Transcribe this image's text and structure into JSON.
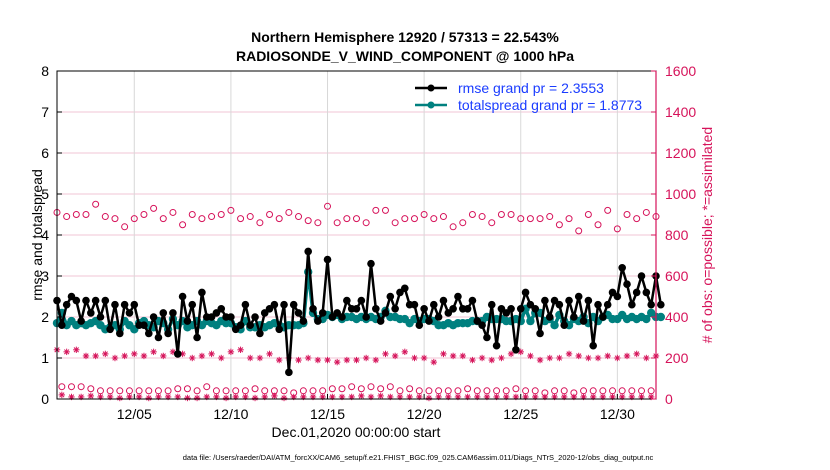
{
  "chart_data": {
    "type": "line",
    "title": "Northern Hemisphere 12920 / 57313 = 22.543%",
    "subtitle": "RADIOSONDE_V_WIND_COMPONENT @ 1000 hPa",
    "xlabel": "Dec.01,2020 00:00:00 start",
    "ylabel": "rmse and totalspread",
    "ylabel_right": "# of obs: o=possible; *=assimilated",
    "footer": "data file: /Users/raeder/DAI/ATM_forcXX/CAM6_setup/f.e21.FHIST_BGC.f09_025.CAM6assim.011/Diags_NTrS_2020-12/obs_diag_output.nc",
    "xlim_days": [
      0,
      31
    ],
    "ylim": [
      0,
      8
    ],
    "ylim_right": [
      0,
      1600
    ],
    "grid": true,
    "legend_position": "top-right",
    "x_ticks": [
      {
        "day": 4,
        "label": "12/05"
      },
      {
        "day": 9,
        "label": "12/10"
      },
      {
        "day": 14,
        "label": "12/15"
      },
      {
        "day": 19,
        "label": "12/20"
      },
      {
        "day": 24,
        "label": "12/25"
      },
      {
        "day": 29,
        "label": "12/30"
      }
    ],
    "y_ticks": [
      "0",
      "1",
      "2",
      "3",
      "4",
      "5",
      "6",
      "7",
      "8"
    ],
    "y_ticks_right": [
      "0",
      "200",
      "400",
      "600",
      "800",
      "1000",
      "1200",
      "1400",
      "1600"
    ],
    "x_step_days": 0.25,
    "series": [
      {
        "name": "rmse grand pr = 2.3553",
        "axis": "left",
        "color": "#000000",
        "values": [
          2.4,
          1.8,
          2.3,
          2.5,
          2.4,
          1.9,
          2.4,
          2.1,
          2.4,
          2.0,
          2.4,
          1.7,
          2.3,
          1.6,
          2.3,
          2.1,
          2.3,
          1.8,
          1.8,
          1.6,
          2.0,
          1.5,
          2.1,
          1.6,
          2.1,
          1.1,
          2.5,
          1.9,
          2.3,
          1.5,
          2.6,
          2.0,
          2.0,
          2.1,
          2.2,
          2.0,
          2.0,
          1.7,
          1.8,
          2.3,
          1.8,
          2.0,
          1.6,
          2.1,
          2.2,
          2.3,
          1.7,
          2.3,
          0.65,
          2.3,
          2.1,
          1.9,
          3.6,
          2.2,
          1.9,
          2.1,
          3.4,
          2.0,
          2.1,
          2.0,
          2.4,
          2.2,
          2.2,
          2.4,
          2.0,
          3.3,
          2.2,
          1.9,
          2.1,
          2.5,
          2.2,
          2.6,
          2.7,
          2.3,
          2.3,
          1.8,
          2.2,
          1.9,
          2.3,
          2.0,
          2.4,
          2.1,
          2.2,
          2.5,
          2.2,
          2.2,
          2.4,
          1.9,
          1.8,
          1.5,
          2.3,
          1.3,
          2.2,
          2.1,
          2.2,
          1.2,
          2.2,
          2.6,
          2.3,
          2.2,
          1.6,
          2.4,
          2.0,
          2.4,
          2.3,
          1.8,
          2.4,
          2.0,
          2.5,
          1.9,
          2.4,
          1.3,
          2.3,
          2.0,
          2.3,
          2.6,
          2.5,
          3.2,
          2.8,
          2.3,
          2.6,
          3.0,
          2.6,
          2.3,
          3.0,
          2.3
        ],
        "marker": "filled-circle"
      },
      {
        "name": "totalspread grand pr = 1.8773",
        "axis": "left",
        "color": "#00807f",
        "values": [
          1.85,
          2.1,
          1.8,
          1.9,
          1.8,
          1.85,
          1.8,
          1.85,
          1.9,
          1.8,
          1.7,
          1.75,
          1.8,
          1.7,
          1.9,
          1.8,
          1.7,
          1.85,
          1.9,
          1.8,
          1.75,
          1.9,
          1.85,
          1.7,
          1.95,
          1.8,
          1.9,
          1.75,
          1.8,
          1.9,
          1.8,
          1.9,
          1.85,
          1.8,
          1.9,
          1.85,
          1.85,
          1.75,
          1.7,
          1.9,
          1.75,
          1.75,
          1.8,
          1.75,
          1.8,
          1.85,
          1.8,
          1.75,
          1.8,
          1.8,
          1.8,
          1.85,
          3.1,
          2.1,
          1.95,
          1.95,
          2.05,
          2.0,
          2.05,
          1.95,
          2.0,
          2.0,
          1.95,
          2.0,
          1.95,
          2.0,
          1.95,
          2.0,
          2.15,
          2.0,
          2.0,
          1.95,
          1.95,
          1.85,
          1.95,
          1.9,
          1.95,
          1.95,
          1.9,
          1.8,
          1.8,
          1.85,
          1.8,
          1.85,
          1.85,
          1.85,
          1.9,
          1.9,
          1.9,
          2.0,
          1.95,
          1.95,
          1.95,
          1.9,
          1.9,
          1.95,
          1.9,
          2.2,
          1.9,
          2.1,
          2.1,
          1.9,
          1.95,
          1.8,
          2.05,
          1.9,
          1.8,
          1.95,
          1.9,
          2.0,
          1.85,
          2.0,
          1.9,
          2.0,
          2.05,
          1.95,
          1.95,
          2.05,
          1.95,
          2.0,
          1.95,
          2.0,
          1.95,
          2.1,
          2.0,
          2.0
        ],
        "marker": "filled-circle"
      },
      {
        "name": "possible (upper)",
        "axis": "right",
        "color": "#d6135a",
        "marker": "open-circle",
        "step_days": 0.5,
        "start_day": 0,
        "values": [
          910,
          890,
          900,
          900,
          950,
          890,
          880,
          840,
          880,
          900,
          930,
          880,
          910,
          850,
          900,
          880,
          890,
          900,
          920,
          880,
          890,
          860,
          900,
          880,
          910,
          890,
          870,
          860,
          940,
          860,
          880,
          880,
          860,
          920,
          920,
          860,
          880,
          880,
          900,
          880,
          890,
          840,
          860,
          900,
          890,
          860,
          900,
          900,
          880,
          880,
          880,
          890,
          850,
          880,
          820,
          900,
          850,
          920,
          830,
          900,
          880,
          910,
          890,
          880,
          900,
          900,
          910,
          890,
          900,
          920,
          850
        ]
      },
      {
        "name": "possible (lower)",
        "axis": "right",
        "color": "#d6135a",
        "marker": "open-circle",
        "step_days": 0.5,
        "start_day": 0.25,
        "values": [
          60,
          60,
          60,
          50,
          40,
          40,
          40,
          40,
          40,
          40,
          40,
          40,
          50,
          50,
          40,
          60,
          40,
          40,
          40,
          40,
          50,
          40,
          40,
          40,
          30,
          40,
          40,
          40,
          50,
          50,
          60,
          50,
          60,
          50,
          60,
          40,
          50,
          40,
          40,
          40,
          40,
          40,
          50,
          40,
          40,
          40,
          40,
          50,
          40,
          40,
          30,
          40,
          40,
          30,
          40,
          40,
          40,
          40,
          40,
          40,
          40,
          40,
          40,
          40,
          40,
          30,
          40,
          40,
          40,
          40
        ]
      },
      {
        "name": "assimilated (upper)",
        "axis": "right",
        "color": "#d6135a",
        "marker": "asterisk",
        "step_days": 0.5,
        "start_day": 0,
        "values": [
          240,
          230,
          240,
          210,
          210,
          220,
          200,
          210,
          220,
          210,
          230,
          210,
          230,
          220,
          200,
          210,
          220,
          200,
          230,
          240,
          200,
          200,
          220,
          190,
          200,
          190,
          200,
          190,
          190,
          180,
          190,
          190,
          200,
          190,
          220,
          210,
          230,
          200,
          200,
          180,
          220,
          210,
          210,
          190,
          200,
          190,
          200,
          220,
          230,
          210,
          190,
          200,
          200,
          220,
          210,
          200,
          200,
          210,
          200,
          210,
          220,
          200,
          210,
          220,
          200,
          200,
          190,
          210,
          220,
          210,
          190,
          210,
          200,
          220,
          190
        ]
      },
      {
        "name": "assimilated (lower)",
        "axis": "right",
        "color": "#d6135a",
        "marker": "asterisk",
        "step_days": 0.5,
        "start_day": 0.25,
        "values": [
          20,
          10,
          10,
          15,
          10,
          10,
          5,
          10,
          10,
          5,
          10,
          10,
          10,
          5,
          5,
          10,
          10,
          5,
          10,
          10,
          5,
          10,
          15,
          5,
          10,
          10,
          10,
          10,
          10,
          10,
          10,
          15,
          10,
          15,
          10,
          10,
          10,
          10,
          5,
          10,
          10,
          10,
          10,
          10,
          10,
          10,
          10,
          10,
          10,
          10,
          10,
          10,
          10,
          10,
          10,
          10,
          10,
          10,
          10,
          10,
          10,
          10,
          10,
          10,
          10,
          10,
          10,
          10,
          10,
          10
        ]
      }
    ]
  }
}
